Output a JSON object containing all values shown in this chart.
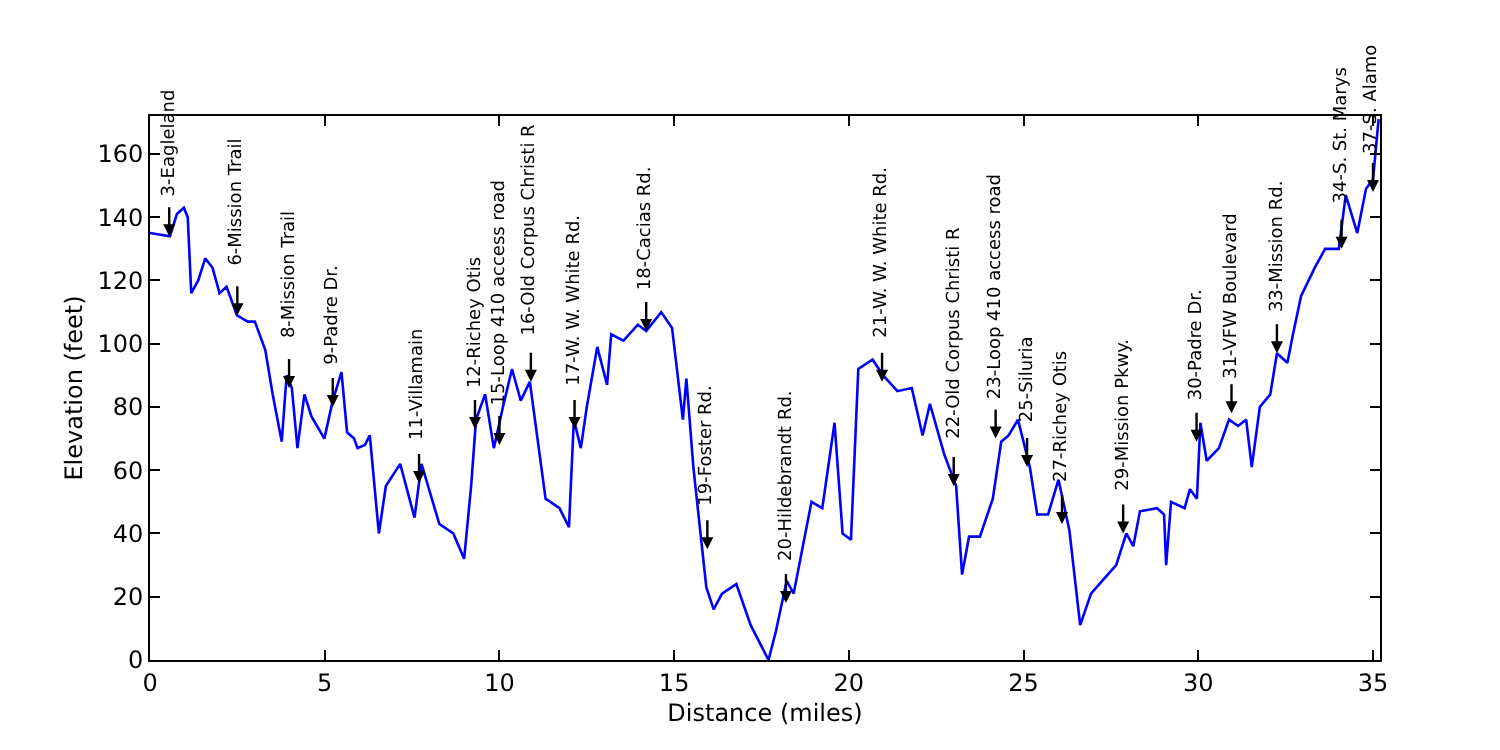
{
  "chart_data": {
    "type": "line",
    "xlabel": "Distance (miles)",
    "ylabel": "Elevation (feet)",
    "xlim": [
      0,
      35.2
    ],
    "ylim": [
      0,
      172
    ],
    "xticks": [
      0,
      5,
      10,
      15,
      20,
      25,
      30,
      35
    ],
    "yticks": [
      0,
      20,
      40,
      60,
      80,
      100,
      120,
      140,
      160
    ],
    "series": [
      {
        "color": "#0000ff",
        "x": [
          0,
          0.57,
          0.77,
          0.97,
          1.08,
          1.18,
          1.38,
          1.58,
          1.79,
          1.99,
          2.19,
          2.49,
          2.8,
          3.0,
          3.3,
          3.51,
          3.77,
          3.91,
          4.06,
          4.22,
          4.42,
          4.62,
          4.99,
          5.23,
          5.48,
          5.64,
          5.84,
          5.94,
          6.15,
          6.29,
          6.55,
          6.75,
          7.16,
          7.57,
          7.77,
          8.28,
          8.68,
          8.99,
          9.19,
          9.33,
          9.59,
          9.84,
          10.1,
          10.36,
          10.61,
          10.87,
          11.32,
          11.72,
          11.99,
          12.13,
          12.33,
          12.5,
          12.8,
          13.08,
          13.2,
          13.55,
          13.96,
          14.2,
          14.63,
          14.94,
          15.25,
          15.35,
          15.55,
          15.92,
          16.13,
          16.37,
          16.78,
          17.19,
          17.7,
          17.91,
          18.22,
          18.42,
          18.93,
          19.24,
          19.59,
          19.82,
          20.06,
          20.27,
          20.68,
          20.98,
          21.39,
          21.8,
          22.11,
          22.32,
          22.73,
          23.07,
          23.24,
          23.44,
          23.75,
          24.12,
          24.36,
          24.57,
          24.84,
          25.18,
          25.39,
          25.7,
          26.0,
          26.31,
          26.62,
          26.93,
          27.25,
          27.65,
          27.94,
          28.14,
          28.33,
          28.82,
          29.02,
          29.08,
          29.22,
          29.61,
          29.76,
          29.96,
          30.06,
          30.24,
          30.59,
          30.88,
          31.14,
          31.37,
          31.53,
          31.76,
          32.06,
          32.25,
          32.55,
          32.71,
          32.94,
          33.33,
          33.63,
          34.02,
          34.22,
          34.55,
          34.8,
          35.0,
          35.16
        ],
        "values": [
          135,
          134,
          141,
          143,
          140,
          116,
          120,
          127,
          124,
          116,
          118,
          109,
          107,
          107,
          98,
          84,
          69,
          90,
          86,
          67,
          84,
          77,
          70,
          82,
          91,
          72,
          70,
          67,
          68,
          71,
          40,
          55,
          62,
          45,
          62,
          43,
          40,
          32,
          55,
          76,
          84,
          67,
          80,
          92,
          82,
          88,
          51,
          48,
          42,
          76,
          67,
          80,
          99,
          87,
          103,
          101,
          106,
          104,
          110,
          105,
          76,
          89,
          61,
          23,
          16,
          21,
          24,
          11,
          0,
          9,
          25,
          21,
          50,
          48,
          75,
          40,
          38,
          92,
          95,
          90,
          85,
          86,
          71,
          81,
          65,
          55,
          27,
          39,
          39,
          51,
          69,
          71,
          76,
          61,
          46,
          46,
          57,
          41,
          11,
          21,
          25,
          30,
          40,
          36,
          47,
          48,
          46,
          30,
          50,
          48,
          54,
          51,
          75,
          63,
          67,
          76,
          74,
          76,
          61,
          80,
          84,
          97,
          94,
          103,
          115,
          124,
          130,
          130,
          147,
          135,
          149,
          152,
          171
        ]
      }
    ],
    "annotations": [
      {
        "text": "3-Eagleland",
        "x": 0.55,
        "y": 134
      },
      {
        "text": "6-Mission Trail",
        "x": 2.5,
        "y": 109
      },
      {
        "text": "8-Mission Trail",
        "x": 3.98,
        "y": 86
      },
      {
        "text": "9-Padre Dr.",
        "x": 5.23,
        "y": 80
      },
      {
        "text": "11-Villamain",
        "x": 7.7,
        "y": 56
      },
      {
        "text": "12-Richey Otis",
        "x": 9.3,
        "y": 73
      },
      {
        "text": "15-Loop 410 access road",
        "x": 10.0,
        "y": 68
      },
      {
        "text": "16-Old Corpus Christi R",
        "x": 10.9,
        "y": 88
      },
      {
        "text": "17-W. W. White Rd.",
        "x": 12.15,
        "y": 73
      },
      {
        "text": "18-Cacias Rd.",
        "x": 14.2,
        "y": 104
      },
      {
        "text": "19-Foster Rd.",
        "x": 15.95,
        "y": 35
      },
      {
        "text": "20-Hildebrandt Rd.",
        "x": 18.2,
        "y": 18
      },
      {
        "text": "21-W. W. White Rd.",
        "x": 20.95,
        "y": 88
      },
      {
        "text": "22-Old Corpus Christi R",
        "x": 23.0,
        "y": 55
      },
      {
        "text": "23-Loop 410 access road",
        "x": 24.2,
        "y": 70
      },
      {
        "text": "25-Siluria",
        "x": 25.1,
        "y": 61
      },
      {
        "text": "27-Richey Otis",
        "x": 26.1,
        "y": 43
      },
      {
        "text": "29-Mission Pkwy.",
        "x": 27.85,
        "y": 40
      },
      {
        "text": "30-Padre Dr.",
        "x": 29.95,
        "y": 69
      },
      {
        "text": "31-VFW Boulevard",
        "x": 30.95,
        "y": 78
      },
      {
        "text": "33-Mission Rd.",
        "x": 32.25,
        "y": 97
      },
      {
        "text": "34-S. St. Marys",
        "x": 34.1,
        "y": 130
      },
      {
        "text": "37-S. Alamo",
        "x": 35.0,
        "y": 148
      }
    ]
  }
}
